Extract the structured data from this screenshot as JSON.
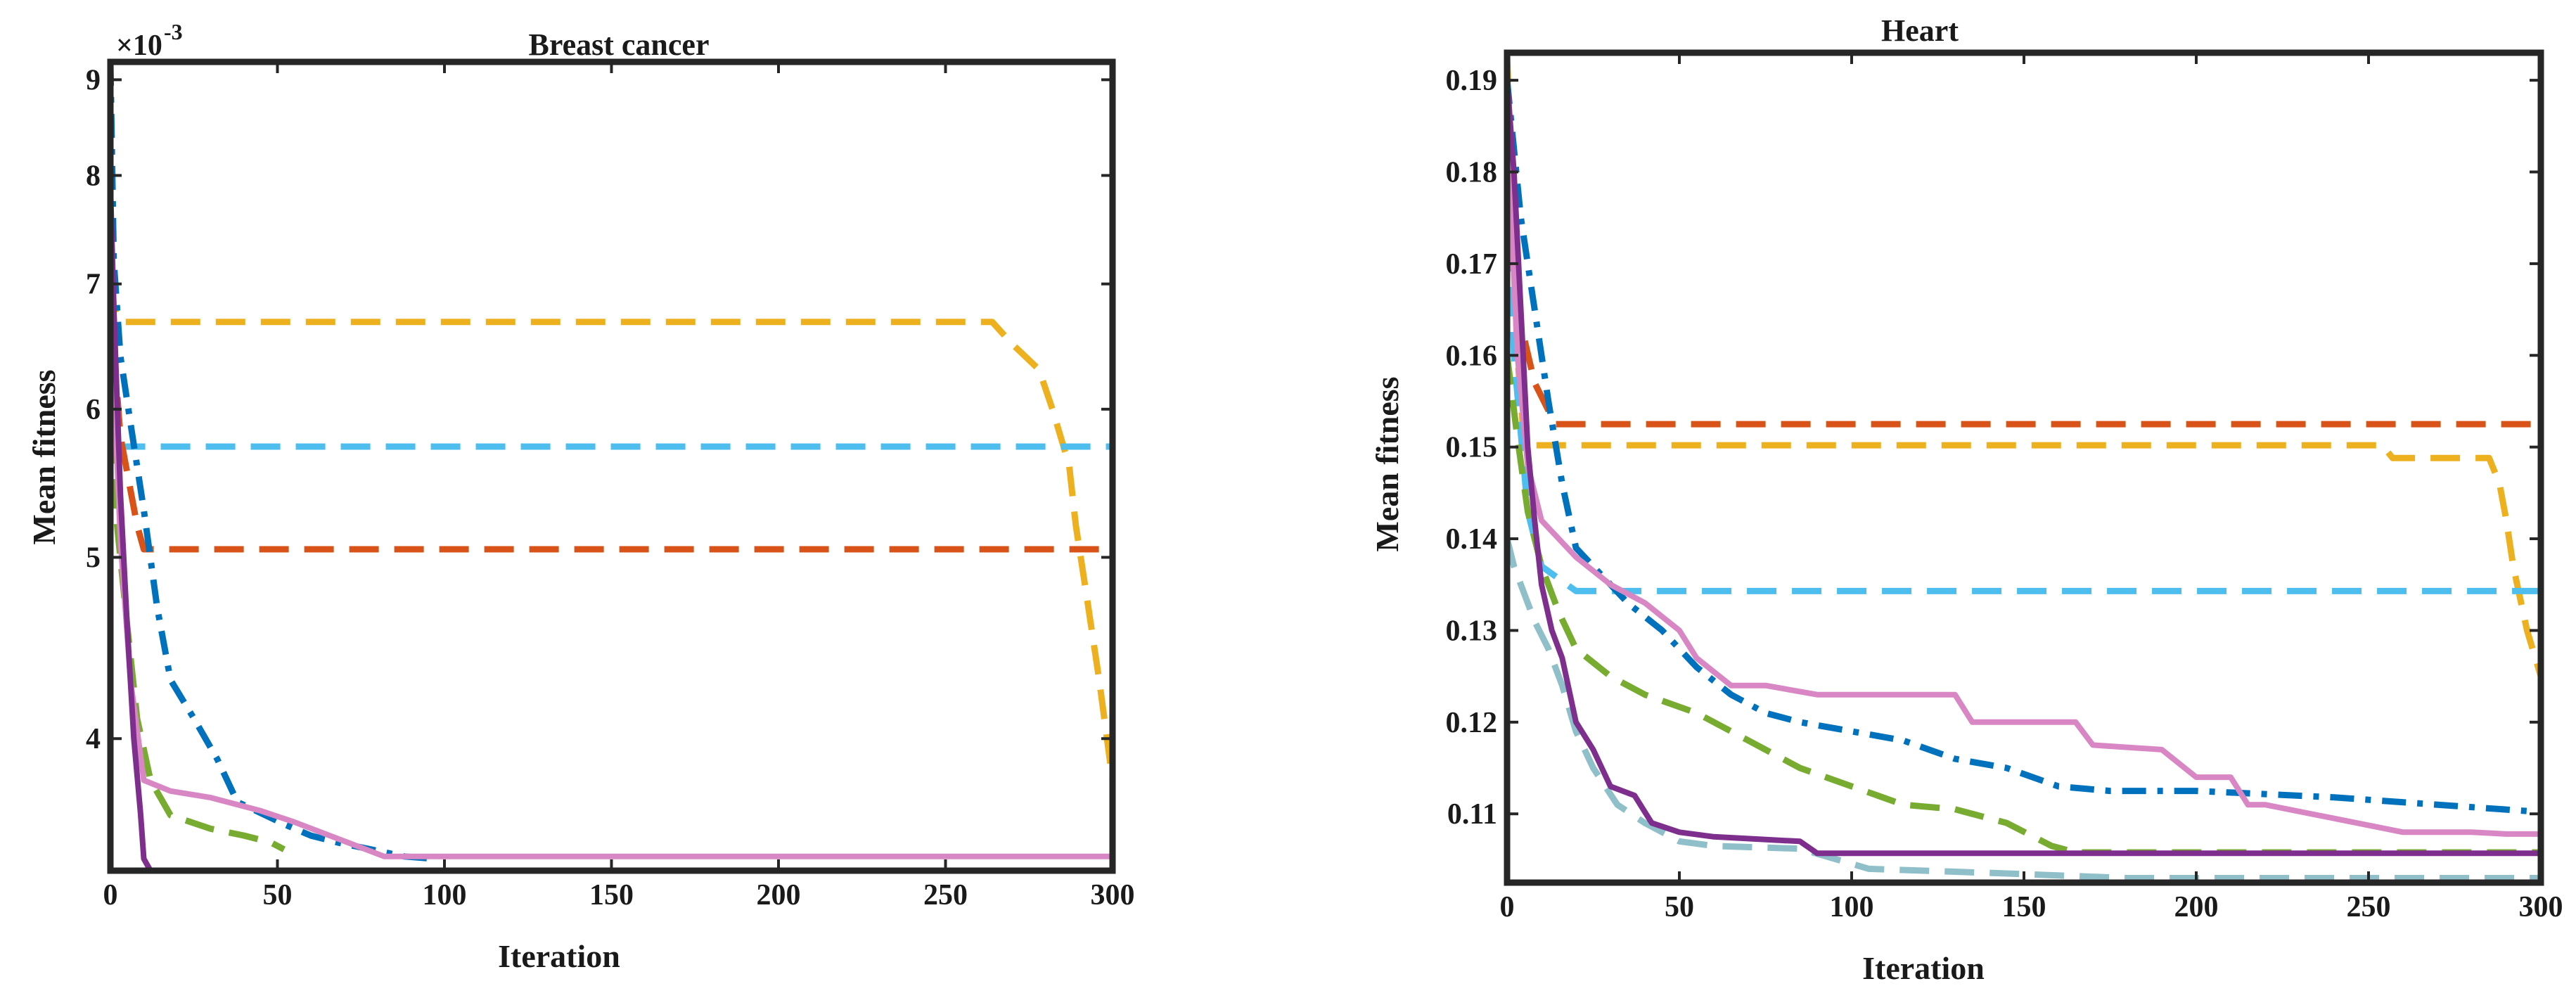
{
  "figure": {
    "subplots": [
      {
        "id": "breast-cancer",
        "title": "Breast cancer",
        "exponent_label": "×10",
        "exponent_power": "-3"
      },
      {
        "id": "heart",
        "title": "Heart"
      }
    ]
  },
  "colors": {
    "dark_blue": "#0072BD",
    "orange_red": "#D95319",
    "yellow": "#EDB120",
    "purple": "#7E2F8E",
    "green": "#77AC30",
    "light_blue": "#4DBEEE",
    "teal": "#8FBFC9",
    "pink": "#D987C4"
  },
  "chart_data": [
    {
      "type": "line",
      "title": "Breast cancer",
      "xlabel": "Iteration",
      "ylabel": "Mean fitness",
      "xlim": [
        0,
        300
      ],
      "ylim": [
        0.0034,
        0.0092
      ],
      "yscale": "log",
      "xticks": [
        0,
        50,
        100,
        150,
        200,
        250,
        300
      ],
      "yticks": [
        {
          "value": 0.004,
          "label": "4"
        },
        {
          "value": 0.005,
          "label": "5"
        },
        {
          "value": 0.006,
          "label": "6"
        },
        {
          "value": 0.007,
          "label": "7"
        },
        {
          "value": 0.008,
          "label": "8"
        },
        {
          "value": 0.009,
          "label": "9"
        }
      ],
      "series": [
        {
          "name": "series-1",
          "color": "#EDB120",
          "dash": "dash",
          "x": [
            0,
            1,
            3,
            264,
            270,
            278,
            282,
            287,
            289,
            292,
            296,
            300
          ],
          "y": [
            0.0074,
            0.0068,
            0.00668,
            0.00668,
            0.0065,
            0.0063,
            0.006,
            0.0056,
            0.0052,
            0.0048,
            0.0043,
            0.0038
          ]
        },
        {
          "name": "series-2",
          "color": "#4DBEEE",
          "dash": "dash",
          "x": [
            0,
            1,
            3,
            300
          ],
          "y": [
            0.0068,
            0.006,
            0.00573,
            0.00573
          ]
        },
        {
          "name": "series-3",
          "color": "#D95319",
          "dash": "dash",
          "x": [
            0,
            3,
            8,
            10,
            300
          ],
          "y": [
            0.0068,
            0.0058,
            0.0052,
            0.00505,
            0.00505
          ]
        },
        {
          "name": "series-4",
          "color": "#0072BD",
          "dash": "dashdot",
          "x": [
            0,
            1,
            3,
            6,
            10,
            14,
            18,
            25,
            32,
            38,
            45,
            52,
            60,
            68,
            78,
            88,
            97
          ],
          "y": [
            0.0092,
            0.0072,
            0.0064,
            0.0059,
            0.0053,
            0.0047,
            0.0043,
            0.0041,
            0.0039,
            0.0037,
            0.00365,
            0.0036,
            0.00355,
            0.00352,
            0.00349,
            0.00346,
            0.00345
          ]
        },
        {
          "name": "series-5",
          "color": "#77AC30",
          "dash": "dash",
          "x": [
            0,
            2,
            5,
            8,
            12,
            18,
            30,
            40,
            48,
            52
          ],
          "y": [
            0.0065,
            0.0052,
            0.0046,
            0.0041,
            0.0038,
            0.00364,
            0.00358,
            0.00355,
            0.00352,
            0.00349
          ]
        },
        {
          "name": "series-6",
          "color": "#D987C4",
          "dash": "solid",
          "x": [
            0,
            1,
            3,
            6,
            10,
            18,
            30,
            45,
            55,
            82,
            300
          ],
          "y": [
            0.0075,
            0.0062,
            0.0051,
            0.0043,
            0.0038,
            0.00375,
            0.00372,
            0.00366,
            0.00361,
            0.00346,
            0.00346
          ]
        },
        {
          "name": "series-7",
          "color": "#7E2F8E",
          "dash": "solid",
          "x": [
            0,
            1,
            3,
            5,
            7,
            9,
            10,
            12,
            300
          ],
          "y": [
            0.0079,
            0.0068,
            0.0054,
            0.0046,
            0.004,
            0.00365,
            0.00345,
            0.0034,
            0.0034
          ]
        }
      ]
    },
    {
      "type": "line",
      "title": "Heart",
      "xlabel": "Iteration",
      "ylabel": "Mean fitness",
      "xlim": [
        0,
        300
      ],
      "ylim": [
        0.1025,
        0.193
      ],
      "yscale": "linear",
      "xticks": [
        0,
        50,
        100,
        150,
        200,
        250,
        300
      ],
      "yticks": [
        {
          "value": 0.11,
          "label": "0.11"
        },
        {
          "value": 0.12,
          "label": "0.12"
        },
        {
          "value": 0.13,
          "label": "0.13"
        },
        {
          "value": 0.14,
          "label": "0.14"
        },
        {
          "value": 0.15,
          "label": "0.15"
        },
        {
          "value": 0.16,
          "label": "0.16"
        },
        {
          "value": 0.17,
          "label": "0.17"
        },
        {
          "value": 0.18,
          "label": "0.18"
        },
        {
          "value": 0.19,
          "label": "0.19"
        }
      ],
      "series": [
        {
          "name": "series-1",
          "color": "#D95319",
          "dash": "dash",
          "x": [
            0,
            3,
            8,
            14,
            300
          ],
          "y": [
            0.186,
            0.165,
            0.157,
            0.1525,
            0.1525
          ]
        },
        {
          "name": "series-2",
          "color": "#EDB120",
          "dash": "dash",
          "x": [
            0,
            3,
            5,
            254,
            257,
            285,
            288,
            290,
            292,
            296,
            300
          ],
          "y": [
            0.193,
            0.16,
            0.1502,
            0.1502,
            0.1488,
            0.1488,
            0.146,
            0.142,
            0.137,
            0.13,
            0.125
          ]
        },
        {
          "name": "series-3",
          "color": "#4DBEEE",
          "dash": "dash",
          "x": [
            0,
            2,
            6,
            10,
            20,
            300
          ],
          "y": [
            0.192,
            0.16,
            0.143,
            0.137,
            0.1343,
            0.1343
          ]
        },
        {
          "name": "series-4",
          "color": "#0072BD",
          "dash": "dashdot",
          "x": [
            0,
            4,
            8,
            12,
            16,
            20,
            25,
            30,
            35,
            45,
            50,
            55,
            65,
            75,
            85,
            100,
            115,
            130,
            145,
            160,
            175,
            200,
            240,
            270,
            300
          ],
          "y": [
            0.19,
            0.175,
            0.165,
            0.155,
            0.146,
            0.139,
            0.137,
            0.135,
            0.133,
            0.13,
            0.128,
            0.126,
            0.123,
            0.121,
            0.12,
            0.119,
            0.118,
            0.116,
            0.115,
            0.113,
            0.1125,
            0.1125,
            0.1118,
            0.111,
            0.1102
          ]
        },
        {
          "name": "series-5",
          "color": "#77AC30",
          "dash": "dash",
          "x": [
            0,
            3,
            6,
            10,
            15,
            20,
            30,
            40,
            55,
            70,
            85,
            100,
            115,
            130,
            145,
            158,
            165,
            300
          ],
          "y": [
            0.16,
            0.151,
            0.143,
            0.137,
            0.132,
            0.128,
            0.125,
            0.123,
            0.121,
            0.118,
            0.115,
            0.113,
            0.111,
            0.1105,
            0.109,
            0.1065,
            0.1058,
            0.1058
          ]
        },
        {
          "name": "series-6",
          "color": "#8FBFC9",
          "dash": "dash",
          "x": [
            0,
            2,
            5,
            8,
            12,
            16,
            20,
            25,
            32,
            40,
            50,
            60,
            85,
            105,
            145,
            180,
            300
          ],
          "y": [
            0.14,
            0.137,
            0.134,
            0.131,
            0.128,
            0.124,
            0.119,
            0.115,
            0.111,
            0.109,
            0.107,
            0.1065,
            0.1062,
            0.104,
            0.1035,
            0.103,
            0.103
          ]
        },
        {
          "name": "series-7",
          "color": "#D987C4",
          "dash": "solid",
          "x": [
            0,
            3,
            6,
            10,
            20,
            30,
            40,
            50,
            55,
            65,
            75,
            90,
            130,
            135,
            165,
            170,
            190,
            200,
            210,
            215,
            220,
            240,
            260,
            280,
            290,
            300
          ],
          "y": [
            0.185,
            0.16,
            0.148,
            0.142,
            0.138,
            0.135,
            0.133,
            0.13,
            0.127,
            0.124,
            0.124,
            0.123,
            0.123,
            0.12,
            0.12,
            0.1175,
            0.117,
            0.114,
            0.114,
            0.111,
            0.111,
            0.1095,
            0.108,
            0.108,
            0.1078,
            0.1078
          ]
        },
        {
          "name": "series-8",
          "color": "#7E2F8E",
          "dash": "solid",
          "x": [
            0,
            2,
            4,
            6,
            8,
            10,
            13,
            16,
            20,
            25,
            30,
            37,
            42,
            50,
            60,
            85,
            90,
            300
          ],
          "y": [
            0.19,
            0.18,
            0.165,
            0.15,
            0.142,
            0.135,
            0.13,
            0.127,
            0.12,
            0.117,
            0.113,
            0.112,
            0.109,
            0.108,
            0.1075,
            0.107,
            0.1057,
            0.1057
          ]
        }
      ]
    }
  ]
}
